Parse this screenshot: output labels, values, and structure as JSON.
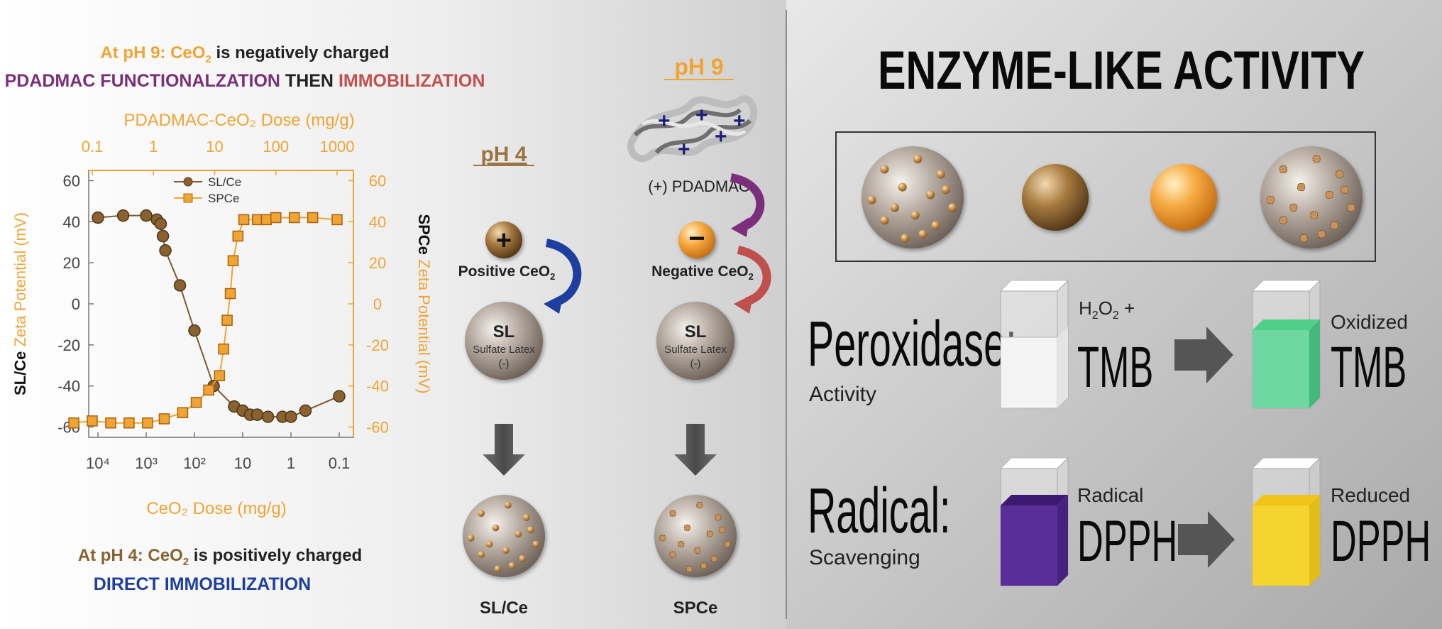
{
  "colors": {
    "orange": "#f0a434",
    "brown": "#7a5a2e",
    "purple": "#7b2f7a",
    "red": "#c0504d",
    "blue": "#1f3fa0",
    "green": "#4fcf8a",
    "violet": "#5a2e98",
    "yellow": "#f6d430"
  },
  "left_panel": {
    "top_caption": {
      "prefix": "At pH 9: CeO",
      "sub": "2",
      "suffix": " is negatively charged"
    },
    "top_caption2": {
      "part1": "PDADMAC FUNCTIONALZATION",
      "part2": " THEN ",
      "part3": "IMMOBILIZATION"
    },
    "bottom_caption": {
      "prefix": "At pH 4: CeO",
      "sub": "2",
      "suffix": " is positively charged"
    },
    "bottom_caption2": "DIRECT IMMOBILIZATION"
  },
  "chart_data": {
    "type": "scatter",
    "top_axis_label": "PDADMAC-CeO₂ Dose (mg/g)",
    "top_ticks": [
      "0.1",
      "1",
      "10",
      "100",
      "1000"
    ],
    "bottom_axis_label": "CeO₂ Dose (mg/g)",
    "bottom_ticks": [
      "10⁴",
      "10³",
      "10²",
      "10",
      "1",
      "0.1"
    ],
    "left_axis_label": {
      "bold": "SL/Ce",
      "rest": " Zeta Potential (mV)"
    },
    "right_axis_label": {
      "bold": "SPCe",
      "rest": " Zeta Potential (mV)"
    },
    "left_ticks": [
      60,
      40,
      20,
      0,
      -20,
      -40,
      -60
    ],
    "right_ticks": [
      60,
      40,
      20,
      0,
      -20,
      -40,
      -60
    ],
    "ylim": [
      -65,
      65
    ],
    "legend": "top-center",
    "series": [
      {
        "name": "SL/Ce",
        "color": "#7a5a2e",
        "marker": "circle",
        "axis": "bottom (reversed log)",
        "x": [
          10000,
          3000,
          1000,
          600,
          500,
          450,
          400,
          200,
          100,
          40,
          15,
          10,
          7,
          5,
          3,
          1.5,
          1,
          0.5,
          0.1
        ],
        "y": [
          42,
          43,
          43,
          41,
          39,
          33,
          26,
          9,
          -13,
          -40,
          -50,
          -52,
          -54,
          -54,
          -55,
          -55,
          -55,
          -52,
          -45
        ]
      },
      {
        "name": "SPCe",
        "color": "#f0a434",
        "marker": "square",
        "axis": "top (log)",
        "x": [
          0.05,
          0.1,
          0.2,
          0.4,
          0.8,
          1.5,
          3,
          5,
          8,
          12,
          14,
          16,
          18,
          20,
          24,
          30,
          50,
          70,
          100,
          200,
          400,
          1000
        ],
        "y": [
          -58,
          -57,
          -58,
          -58,
          -58,
          -56,
          -53,
          -48,
          -42,
          -35,
          -22,
          -8,
          5,
          21,
          33,
          41,
          41,
          41,
          42,
          42,
          42,
          41
        ]
      }
    ]
  },
  "middle_panel": {
    "ph4_label": "pH 4",
    "ph9_label": "pH 9",
    "plus_sign": "+",
    "minus_sign": "−",
    "pdadmac_label": "(+) PDADMAC",
    "positive_label": {
      "prefix": "Positive CeO",
      "sub": "2"
    },
    "negative_label": {
      "prefix": "Negative CeO",
      "sub": "2"
    },
    "sphere_title": "SL",
    "sphere_sub": "Sulfate Latex",
    "sphere_charge": "(-)",
    "result_left": "SL/Ce",
    "result_right": "SPCe"
  },
  "right_panel": {
    "title": "ENZYME-LIKE ACTIVITY",
    "peroxidase": {
      "title": "Peroxidase:",
      "sub": "Activity",
      "reagent_top": {
        "prefix": "H",
        "sub1": "2",
        "mid": "O",
        "sub2": "2",
        "suffix": " +"
      },
      "reagent_big": "TMB",
      "product_top": "Oxidized",
      "product_big": "TMB"
    },
    "radical": {
      "title": "Radical:",
      "sub": "Scavenging",
      "reagent_top": "Radical",
      "reagent_big": "DPPH",
      "product_top": "Reduced",
      "product_big": "DPPH"
    }
  }
}
